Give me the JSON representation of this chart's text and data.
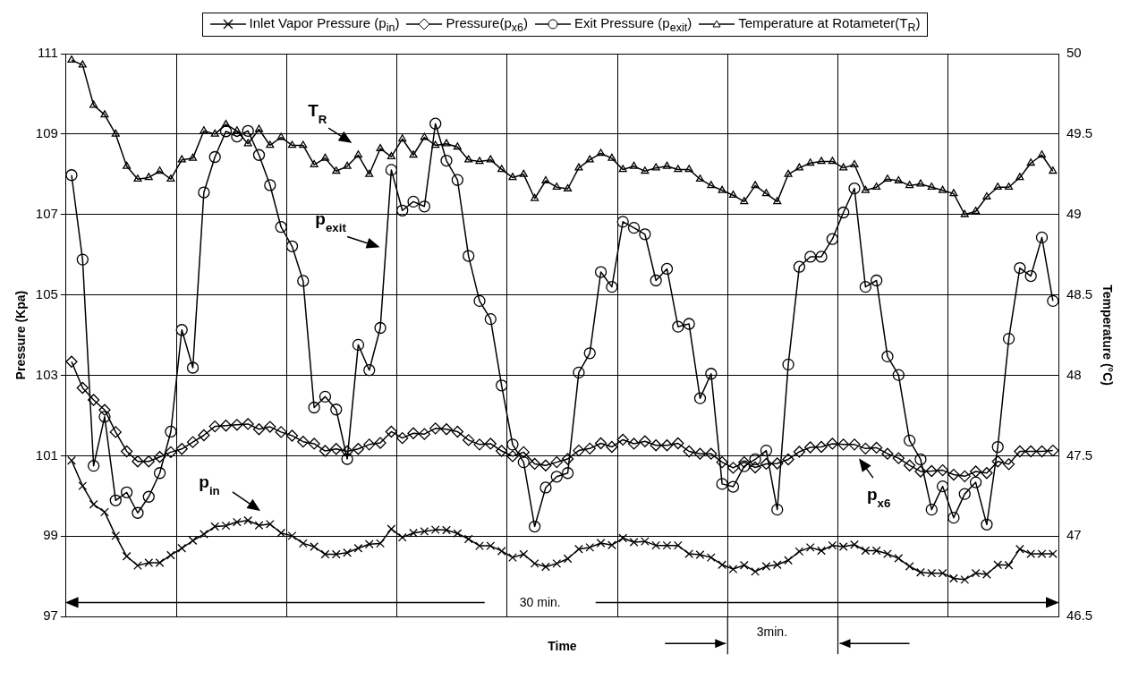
{
  "chart_data": {
    "type": "line",
    "xlabel": "Time",
    "ylabel": "Pressure (Kpa)",
    "y2label": "Temperature (°C)",
    "categories": [
      null,
      null,
      null,
      null,
      null,
      null,
      null,
      null,
      null,
      null,
      null,
      null,
      null,
      null,
      null,
      null,
      null,
      null,
      null,
      null,
      null,
      null,
      null,
      null,
      null,
      null,
      null,
      null,
      null,
      null,
      null,
      null,
      null,
      null,
      null,
      null,
      null,
      null,
      null,
      null,
      null,
      null,
      null,
      null,
      null,
      null,
      null,
      null,
      null,
      null,
      null,
      null,
      null,
      null,
      null,
      null,
      null,
      null,
      null,
      null,
      null,
      null,
      null,
      null,
      null,
      null,
      null,
      null,
      null,
      null,
      null,
      null,
      null,
      null,
      null,
      null,
      null,
      null,
      null,
      null,
      null,
      null,
      null,
      null,
      null,
      null,
      null,
      null,
      null,
      null
    ],
    "series": [
      {
        "name": "Inlet Vapor Pressure (p$_{in}$)",
        "color": "#000000",
        "marker": "cross",
        "values": [
          100.88,
          100.25,
          99.79,
          99.6,
          99.01,
          98.5,
          98.27,
          98.34,
          98.34,
          98.53,
          98.7,
          98.89,
          99.05,
          99.24,
          99.26,
          99.35,
          99.39,
          99.27,
          99.3,
          99.08,
          99.01,
          98.82,
          98.74,
          98.55,
          98.55,
          98.59,
          98.7,
          98.8,
          98.82,
          99.18,
          98.97,
          99.08,
          99.12,
          99.16,
          99.15,
          99.07,
          98.93,
          98.76,
          98.76,
          98.63,
          98.47,
          98.55,
          98.32,
          98.24,
          98.32,
          98.44,
          98.68,
          98.72,
          98.83,
          98.78,
          98.95,
          98.85,
          98.87,
          98.77,
          98.77,
          98.77,
          98.56,
          98.54,
          98.47,
          98.29,
          98.18,
          98.28,
          98.12,
          98.25,
          98.29,
          98.4,
          98.62,
          98.72,
          98.64,
          98.77,
          98.74,
          98.79,
          98.64,
          98.64,
          98.56,
          98.45,
          98.25,
          98.1,
          98.08,
          98.08,
          97.95,
          97.92,
          98.08,
          98.05,
          98.29,
          98.28,
          98.68,
          98.56,
          98.56,
          98.56
        ]
      },
      {
        "name": "Pressure(p$_{x6}$)",
        "color": "#000000",
        "marker": "diamond",
        "values": [
          103.34,
          102.69,
          102.39,
          102.14,
          101.59,
          101.11,
          100.86,
          100.86,
          100.97,
          101.09,
          101.17,
          101.34,
          101.51,
          101.73,
          101.75,
          101.77,
          101.79,
          101.66,
          101.72,
          101.59,
          101.5,
          101.35,
          101.3,
          101.12,
          101.17,
          101.11,
          101.17,
          101.28,
          101.32,
          101.6,
          101.44,
          101.56,
          101.54,
          101.68,
          101.66,
          101.6,
          101.39,
          101.28,
          101.3,
          101.12,
          100.99,
          101.09,
          100.8,
          100.76,
          100.84,
          100.92,
          101.13,
          101.18,
          101.31,
          101.22,
          101.4,
          101.3,
          101.36,
          101.26,
          101.26,
          101.31,
          101.11,
          101.05,
          101.05,
          100.84,
          100.7,
          100.84,
          100.71,
          100.8,
          100.81,
          100.91,
          101.1,
          101.21,
          101.22,
          101.3,
          101.28,
          101.28,
          101.18,
          101.2,
          101.05,
          100.94,
          100.76,
          100.61,
          100.62,
          100.64,
          100.53,
          100.49,
          100.61,
          100.57,
          100.86,
          100.79,
          101.11,
          101.11,
          101.11,
          101.13
        ]
      },
      {
        "name": "Exit Pressure (p$_{exit}$)",
        "color": "#000000",
        "marker": "circle",
        "values": [
          107.98,
          105.88,
          100.75,
          101.97,
          99.89,
          100.09,
          99.58,
          99.98,
          100.57,
          101.6,
          104.13,
          103.19,
          107.55,
          108.43,
          109.07,
          108.94,
          109.08,
          108.48,
          107.73,
          106.69,
          106.21,
          105.35,
          102.2,
          102.47,
          102.15,
          100.92,
          103.76,
          103.13,
          104.18,
          108.11,
          107.1,
          107.32,
          107.2,
          109.26,
          108.34,
          107.86,
          105.97,
          104.85,
          104.4,
          102.75,
          101.28,
          100.84,
          99.24,
          100.21,
          100.48,
          100.57,
          103.07,
          103.55,
          105.57,
          105.2,
          106.82,
          106.67,
          106.51,
          105.36,
          105.65,
          104.21,
          104.28,
          102.43,
          103.04,
          100.3,
          100.23,
          100.74,
          100.91,
          101.13,
          99.66,
          103.27,
          105.7,
          105.95,
          105.95,
          106.39,
          107.05,
          107.65,
          105.2,
          105.36,
          103.47,
          103.01,
          101.38,
          100.91,
          99.66,
          100.24,
          99.46,
          100.05,
          100.34,
          99.29,
          101.22,
          103.91,
          105.67,
          105.47,
          106.43,
          104.85
        ]
      },
      {
        "name": "Temperature at Rotameter(T$_{R}$)",
        "color": "#000000",
        "marker": "triangle",
        "axis": "y2",
        "values": [
          49.96,
          49.93,
          49.68,
          49.62,
          49.5,
          49.3,
          49.22,
          49.23,
          49.27,
          49.22,
          49.34,
          49.35,
          49.52,
          49.5,
          49.56,
          49.52,
          49.44,
          49.53,
          49.43,
          49.48,
          49.43,
          49.43,
          49.31,
          49.35,
          49.27,
          49.3,
          49.37,
          49.25,
          49.41,
          49.36,
          49.47,
          49.37,
          49.48,
          49.43,
          49.44,
          49.42,
          49.34,
          49.33,
          49.34,
          49.28,
          49.23,
          49.25,
          49.1,
          49.21,
          49.17,
          49.16,
          49.29,
          49.34,
          49.38,
          49.35,
          49.28,
          49.3,
          49.27,
          49.29,
          49.3,
          49.28,
          49.28,
          49.22,
          49.18,
          49.15,
          49.12,
          49.08,
          49.18,
          49.13,
          49.08,
          49.25,
          49.29,
          49.32,
          49.33,
          49.33,
          49.29,
          49.31,
          49.15,
          49.17,
          49.22,
          49.21,
          49.18,
          49.19,
          49.17,
          49.15,
          49.13,
          49.0,
          49.02,
          49.11,
          49.17,
          49.17,
          49.23,
          49.32,
          49.37,
          49.27
        ]
      }
    ],
    "ylim": [
      97,
      111
    ],
    "yticks": [
      97,
      99,
      101,
      103,
      105,
      107,
      109,
      111
    ],
    "y2lim": [
      46.5,
      50
    ],
    "y2ticks": [
      46.5,
      47,
      47.5,
      48,
      48.5,
      49,
      49.5,
      50
    ],
    "annotations": [
      "T$_{R}$",
      "p$_{exit}$",
      "p$_{in}$",
      "p$_{x6}$",
      "30 min.",
      "3min."
    ],
    "grid": true,
    "legend": "top",
    "line_style": "solid"
  }
}
